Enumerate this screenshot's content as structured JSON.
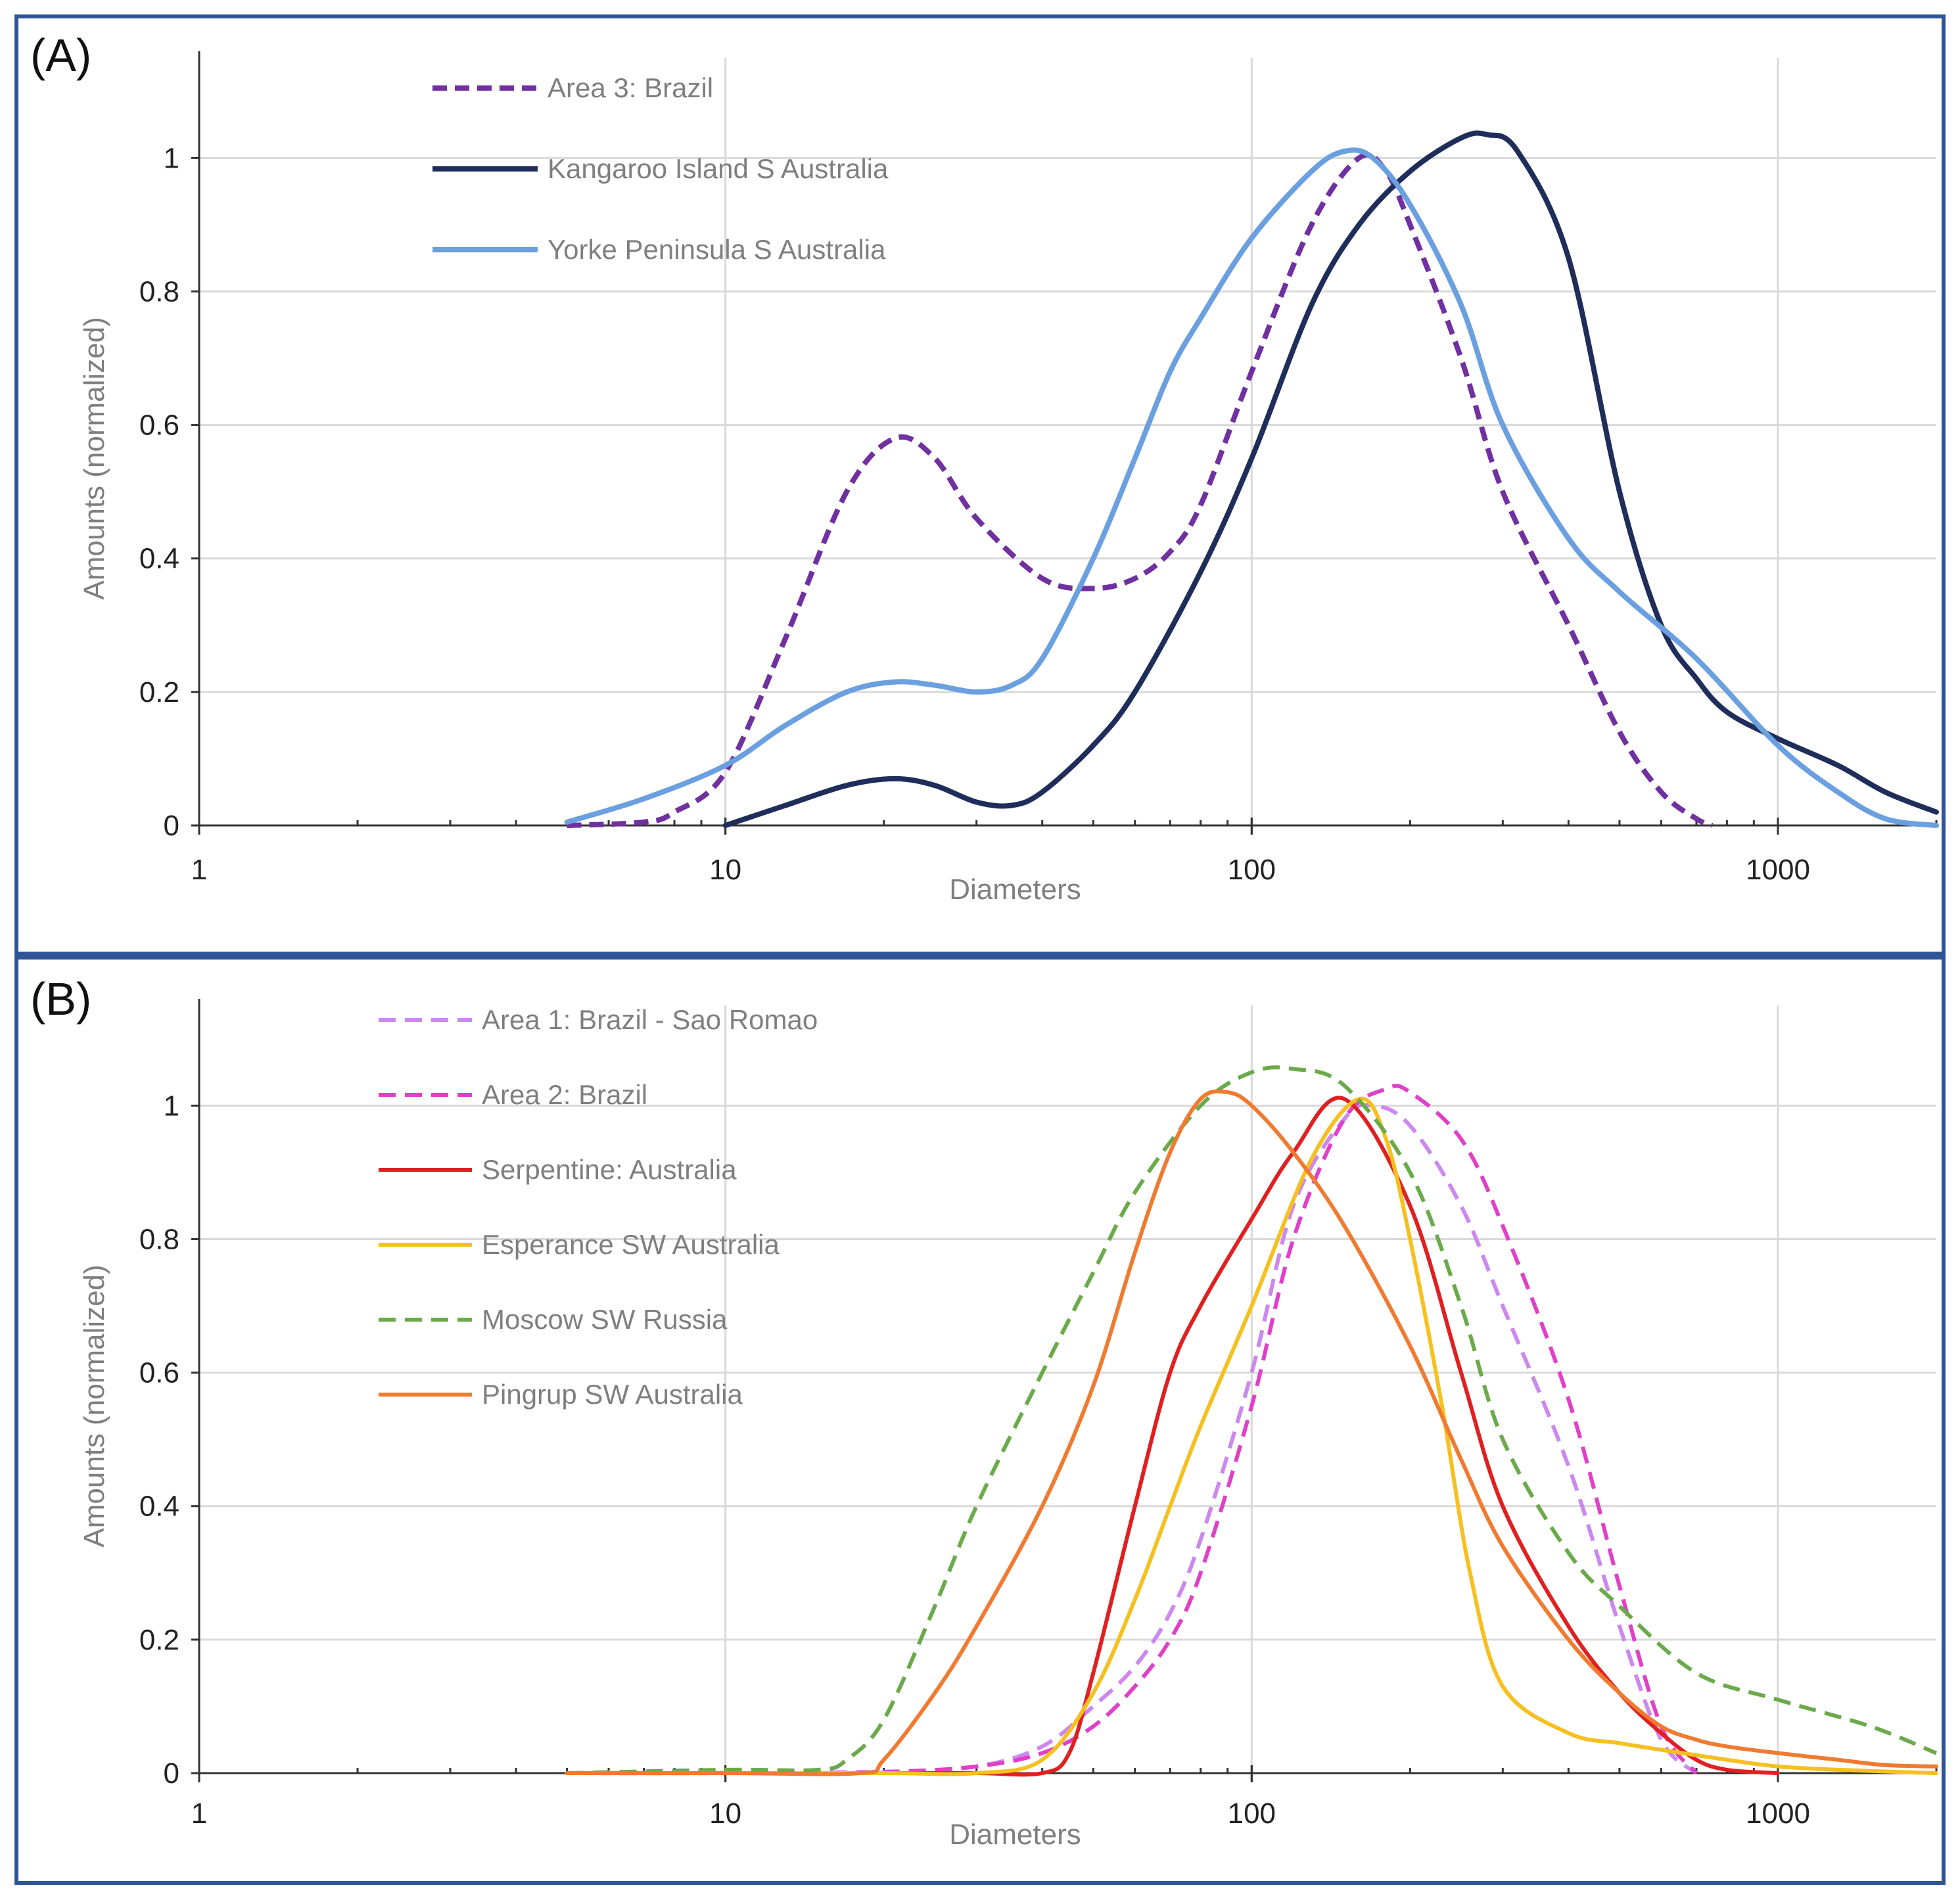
{
  "chart_data": [
    {
      "type": "line",
      "panel_label": "(A)",
      "xlabel": "Diameters",
      "ylabel": "Amounts (normalized)",
      "xscale": "log",
      "xlim": [
        1,
        2000
      ],
      "ylim": [
        0,
        1.15
      ],
      "xticks": [
        1,
        10,
        100,
        1000
      ],
      "xtick_labels": [
        "1",
        "10",
        "100",
        "1000"
      ],
      "yticks": [
        0,
        0.2,
        0.4,
        0.6,
        0.8,
        1
      ],
      "ytick_labels": [
        "0",
        "0.2",
        "0.4",
        "0.6",
        "0.8",
        "1"
      ],
      "grid": true,
      "legend_position": "top-left",
      "series": [
        {
          "name": "Area 3: Brazil",
          "color": "#7030a0",
          "dash": "dashed",
          "x": [
            5,
            7,
            8,
            10,
            13,
            17,
            21,
            25,
            30,
            40,
            50,
            60,
            70,
            80,
            100,
            130,
            160,
            180,
            200,
            250,
            300,
            400,
            500,
            600,
            700,
            750
          ],
          "y": [
            0,
            0.005,
            0.02,
            0.08,
            0.28,
            0.5,
            0.58,
            0.55,
            0.46,
            0.37,
            0.355,
            0.37,
            0.41,
            0.48,
            0.68,
            0.9,
            1.0,
            0.98,
            0.9,
            0.7,
            0.5,
            0.3,
            0.14,
            0.05,
            0.01,
            0
          ]
        },
        {
          "name": "Kangaroo Island S Australia",
          "color": "#1f2d5a",
          "dash": "solid",
          "x": [
            10,
            13,
            17,
            21,
            25,
            30,
            35,
            40,
            50,
            60,
            80,
            100,
            130,
            160,
            200,
            250,
            280,
            320,
            400,
            500,
            600,
            700,
            800,
            1000,
            1300,
            1600,
            2000
          ],
          "y": [
            0,
            0.03,
            0.06,
            0.07,
            0.06,
            0.035,
            0.03,
            0.05,
            0.12,
            0.2,
            0.38,
            0.55,
            0.78,
            0.9,
            0.98,
            1.03,
            1.035,
            1.01,
            0.85,
            0.5,
            0.3,
            0.22,
            0.17,
            0.13,
            0.09,
            0.05,
            0.02
          ]
        },
        {
          "name": "Yorke Peninsula S Australia",
          "color": "#6a9fe0",
          "dash": "solid",
          "x": [
            5,
            7,
            10,
            13,
            17,
            21,
            25,
            30,
            35,
            40,
            50,
            60,
            70,
            80,
            100,
            130,
            150,
            170,
            200,
            250,
            300,
            400,
            500,
            700,
            1000,
            1300,
            1600,
            2000
          ],
          "y": [
            0.005,
            0.04,
            0.09,
            0.15,
            0.2,
            0.215,
            0.21,
            0.2,
            0.21,
            0.25,
            0.4,
            0.55,
            0.68,
            0.76,
            0.88,
            0.98,
            1.01,
            1.0,
            0.93,
            0.78,
            0.6,
            0.43,
            0.35,
            0.25,
            0.12,
            0.05,
            0.01,
            0
          ]
        }
      ]
    },
    {
      "type": "line",
      "panel_label": "(B)",
      "xlabel": "Diameters",
      "ylabel": "Amounts (normalized)",
      "xscale": "log",
      "xlim": [
        1,
        2000
      ],
      "ylim": [
        0,
        1.15
      ],
      "xticks": [
        1,
        10,
        100,
        1000
      ],
      "xtick_labels": [
        "1",
        "10",
        "100",
        "1000"
      ],
      "yticks": [
        0,
        0.2,
        0.4,
        0.6,
        0.8,
        1
      ],
      "ytick_labels": [
        "0",
        "0.2",
        "0.4",
        "0.6",
        "0.8",
        "1"
      ],
      "grid": true,
      "legend_position": "top-left",
      "series": [
        {
          "name": "Area 1: Brazil - Sao Romao",
          "color": "#cc88ee",
          "dash": "dashed",
          "x": [
            5,
            10,
            20,
            30,
            40,
            50,
            60,
            70,
            80,
            100,
            120,
            150,
            170,
            200,
            250,
            300,
            400,
            500,
            600,
            700
          ],
          "y": [
            0,
            0,
            0.002,
            0.01,
            0.04,
            0.1,
            0.16,
            0.24,
            0.35,
            0.6,
            0.85,
            0.98,
            1.0,
            0.97,
            0.85,
            0.7,
            0.46,
            0.22,
            0.05,
            0
          ]
        },
        {
          "name": "Area 2: Brazil",
          "color": "#e040c8",
          "dash": "dashed",
          "x": [
            5,
            10,
            20,
            30,
            40,
            50,
            60,
            70,
            80,
            100,
            120,
            150,
            180,
            200,
            250,
            300,
            400,
            500,
            600,
            700
          ],
          "y": [
            0,
            0,
            0.002,
            0.01,
            0.03,
            0.07,
            0.13,
            0.2,
            0.3,
            0.55,
            0.8,
            0.98,
            1.025,
            1.02,
            0.95,
            0.82,
            0.56,
            0.28,
            0.07,
            0
          ]
        },
        {
          "name": "Serpentine: Australia",
          "color": "#e02020",
          "dash": "solid",
          "x": [
            5,
            10,
            20,
            30,
            40,
            45,
            50,
            60,
            70,
            80,
            100,
            120,
            150,
            200,
            250,
            300,
            400,
            500,
            600,
            700,
            800,
            1000
          ],
          "y": [
            0,
            0,
            0,
            0,
            0,
            0.03,
            0.15,
            0.4,
            0.6,
            0.7,
            0.83,
            0.93,
            1.01,
            0.85,
            0.6,
            0.4,
            0.22,
            0.12,
            0.06,
            0.02,
            0.005,
            0
          ]
        },
        {
          "name": "Esperance SW Australia",
          "color": "#f5c020",
          "dash": "solid",
          "x": [
            5,
            10,
            20,
            30,
            40,
            50,
            60,
            70,
            80,
            100,
            130,
            160,
            180,
            200,
            230,
            260,
            300,
            400,
            500,
            600,
            800,
            1000,
            1300,
            2000
          ],
          "y": [
            0,
            0,
            0,
            0,
            0.02,
            0.12,
            0.26,
            0.4,
            0.52,
            0.7,
            0.92,
            1.01,
            0.95,
            0.8,
            0.55,
            0.3,
            0.13,
            0.06,
            0.045,
            0.035,
            0.02,
            0.01,
            0.005,
            0
          ]
        },
        {
          "name": "Moscow SW Russia",
          "color": "#6aaa4a",
          "dash": "dashed",
          "x": [
            5,
            10,
            15,
            17,
            20,
            25,
            30,
            40,
            50,
            60,
            80,
            100,
            120,
            150,
            200,
            250,
            300,
            400,
            500,
            700,
            1000,
            1500,
            2000
          ],
          "y": [
            0,
            0.005,
            0.005,
            0.02,
            0.08,
            0.25,
            0.4,
            0.6,
            0.75,
            0.87,
            1.0,
            1.05,
            1.055,
            1.03,
            0.9,
            0.7,
            0.5,
            0.33,
            0.25,
            0.15,
            0.11,
            0.07,
            0.03
          ]
        },
        {
          "name": "Pingrup SW Australia",
          "color": "#f07a30",
          "dash": "solid",
          "x": [
            5,
            10,
            18,
            20,
            25,
            30,
            40,
            50,
            60,
            70,
            80,
            90,
            100,
            120,
            150,
            200,
            250,
            300,
            400,
            500,
            600,
            700,
            800,
            1000,
            1300,
            1600,
            2000
          ],
          "y": [
            0,
            0,
            0,
            0.02,
            0.12,
            0.22,
            0.4,
            0.58,
            0.78,
            0.93,
            1.01,
            1.02,
            1.0,
            0.93,
            0.82,
            0.64,
            0.47,
            0.34,
            0.2,
            0.12,
            0.07,
            0.05,
            0.04,
            0.03,
            0.02,
            0.012,
            0.01
          ]
        }
      ]
    }
  ]
}
